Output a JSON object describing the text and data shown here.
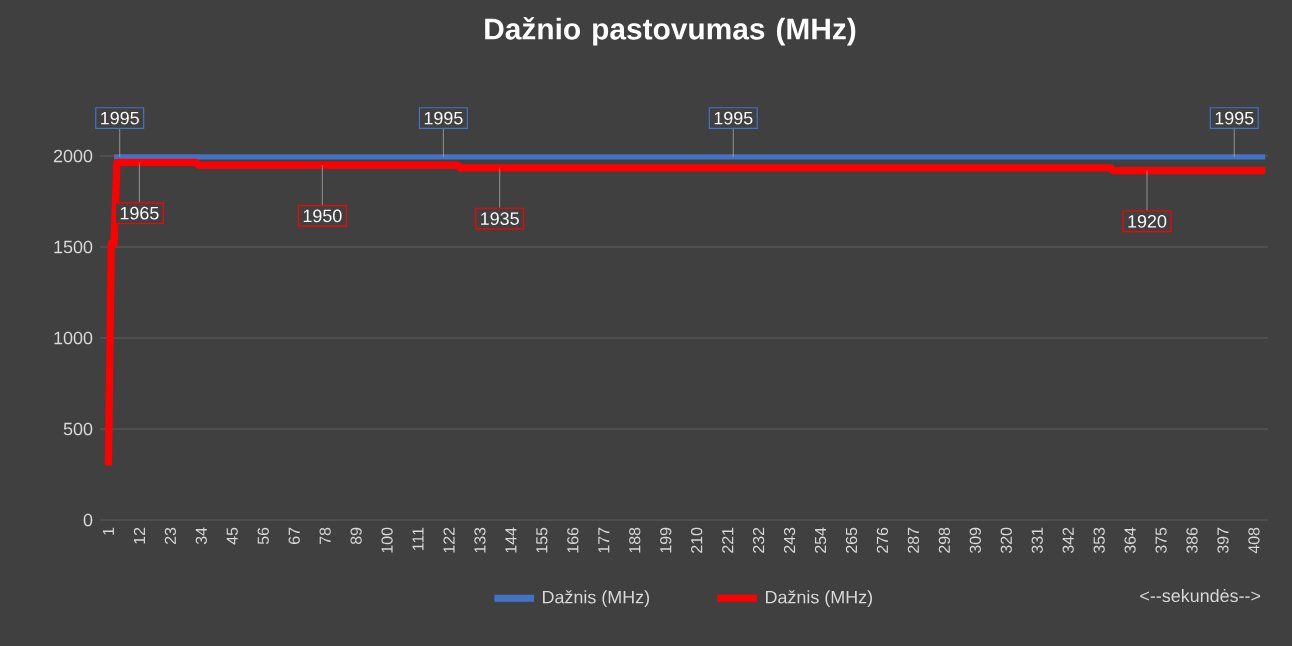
{
  "chart_data": {
    "type": "line",
    "title": "Dažnio pastovumas (MHz)",
    "xlabel": "<--sekundės-->",
    "xlim": [
      -2,
      413
    ],
    "xticks": [
      1,
      12,
      23,
      34,
      45,
      56,
      67,
      78,
      89,
      100,
      111,
      122,
      133,
      144,
      155,
      166,
      177,
      188,
      199,
      210,
      221,
      232,
      243,
      254,
      265,
      276,
      287,
      298,
      309,
      320,
      331,
      342,
      353,
      364,
      375,
      386,
      397,
      408
    ],
    "ylim": [
      0,
      2000
    ],
    "yticks": [
      0,
      500,
      1000,
      1500,
      2000
    ],
    "grid": "y",
    "legend": "bottom",
    "line_style": "solid",
    "series": [
      {
        "name": "Dažnis (MHz)",
        "color": "#4472c4",
        "x": [
          3,
          412
        ],
        "values": [
          1995,
          1995
        ]
      },
      {
        "name": "Dažnis (MHz)",
        "color": "#ff0000",
        "x": [
          1,
          2,
          3,
          4,
          32,
          33,
          125,
          126,
          357,
          358,
          412
        ],
        "values": [
          300,
          1520,
          1520,
          1965,
          1965,
          1950,
          1950,
          1935,
          1935,
          1920,
          1920
        ]
      }
    ],
    "annotations": [
      {
        "text": "1995",
        "x": 5,
        "y": 1995
      },
      {
        "text": "1995",
        "x": 120,
        "y": 1995
      },
      {
        "text": "1995",
        "x": 223,
        "y": 1995
      },
      {
        "text": "1995",
        "x": 401,
        "y": 1995
      },
      {
        "text": "1965",
        "x": 12,
        "y": 1965
      },
      {
        "text": "1950",
        "x": 77,
        "y": 1950
      },
      {
        "text": "1935",
        "x": 140,
        "y": 1935
      },
      {
        "text": "1920",
        "x": 370,
        "y": 1920
      }
    ]
  }
}
